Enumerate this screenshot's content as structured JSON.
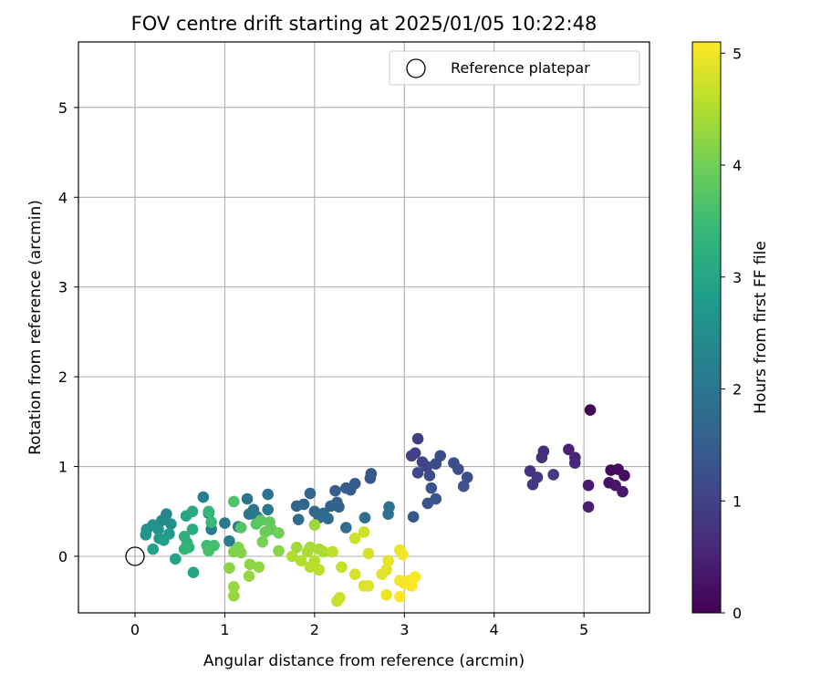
{
  "chart_data": {
    "type": "scatter",
    "title": "FOV centre drift starting at 2025/01/05 10:22:48",
    "xlabel": "Angular distance from reference (arcmin)",
    "ylabel": "Rotation from reference (arcmin)",
    "xlim": [
      -0.63,
      5.73
    ],
    "ylim": [
      -0.63,
      5.73
    ],
    "xticks": [
      0,
      1,
      2,
      3,
      4,
      5
    ],
    "yticks": [
      0,
      1,
      2,
      3,
      4,
      5
    ],
    "grid": true,
    "legend": {
      "entries": [
        "Reference platepar"
      ],
      "placement": "top-right"
    },
    "reference_point": {
      "x": 0,
      "y": 0
    },
    "colorbar": {
      "label": "Hours from first FF file",
      "colormap": "viridis",
      "range": [
        0,
        5.1
      ],
      "ticks": [
        0,
        1,
        2,
        3,
        4,
        5
      ]
    },
    "points": [
      [
        5.07,
        1.63,
        0.05
      ],
      [
        5.3,
        0.96,
        0.1
      ],
      [
        5.38,
        0.97,
        0.15
      ],
      [
        5.45,
        0.9,
        0.2
      ],
      [
        5.28,
        0.82,
        0.25
      ],
      [
        5.35,
        0.79,
        0.3
      ],
      [
        5.43,
        0.72,
        0.35
      ],
      [
        5.05,
        0.79,
        0.4
      ],
      [
        5.05,
        0.55,
        0.45
      ],
      [
        4.83,
        1.19,
        0.5
      ],
      [
        4.9,
        1.1,
        0.55
      ],
      [
        4.9,
        1.04,
        0.6
      ],
      [
        4.55,
        1.17,
        0.65
      ],
      [
        4.53,
        1.1,
        0.7
      ],
      [
        4.4,
        0.95,
        0.75
      ],
      [
        4.48,
        0.88,
        0.8
      ],
      [
        4.43,
        0.8,
        0.85
      ],
      [
        4.66,
        0.91,
        0.9
      ],
      [
        3.15,
        1.31,
        0.95
      ],
      [
        3.12,
        1.15,
        1.0
      ],
      [
        3.08,
        1.12,
        1.02
      ],
      [
        3.2,
        1.05,
        1.05
      ],
      [
        3.25,
        1.0,
        1.08
      ],
      [
        3.15,
        0.93,
        1.1
      ],
      [
        3.28,
        0.9,
        1.12
      ],
      [
        3.4,
        1.12,
        1.15
      ],
      [
        3.35,
        1.03,
        1.18
      ],
      [
        3.55,
        1.04,
        1.2
      ],
      [
        3.6,
        0.97,
        1.22
      ],
      [
        3.7,
        0.88,
        1.25
      ],
      [
        3.66,
        0.78,
        1.28
      ],
      [
        3.3,
        0.76,
        1.3
      ],
      [
        3.35,
        0.64,
        1.32
      ],
      [
        3.26,
        0.59,
        1.35
      ],
      [
        3.1,
        0.44,
        1.38
      ],
      [
        2.63,
        0.92,
        1.4
      ],
      [
        2.62,
        0.87,
        1.43
      ],
      [
        2.45,
        0.81,
        1.45
      ],
      [
        2.35,
        0.76,
        1.48
      ],
      [
        2.4,
        0.74,
        1.5
      ],
      [
        2.23,
        0.73,
        1.52
      ],
      [
        2.25,
        0.6,
        1.55
      ],
      [
        2.27,
        0.55,
        1.58
      ],
      [
        2.18,
        0.56,
        1.6
      ],
      [
        1.95,
        0.7,
        1.62
      ],
      [
        1.88,
        0.58,
        1.65
      ],
      [
        1.8,
        0.56,
        1.68
      ],
      [
        2.0,
        0.5,
        1.7
      ],
      [
        2.1,
        0.48,
        1.72
      ],
      [
        2.05,
        0.43,
        1.75
      ],
      [
        2.15,
        0.42,
        1.78
      ],
      [
        1.82,
        0.41,
        1.8
      ],
      [
        2.56,
        0.43,
        1.82
      ],
      [
        2.35,
        0.32,
        1.85
      ],
      [
        2.83,
        0.55,
        1.88
      ],
      [
        2.82,
        0.47,
        1.9
      ],
      [
        1.48,
        0.69,
        1.92
      ],
      [
        1.25,
        0.64,
        1.95
      ],
      [
        1.32,
        0.52,
        1.98
      ],
      [
        1.27,
        0.47,
        2.0
      ],
      [
        1.48,
        0.52,
        2.02
      ],
      [
        1.36,
        0.44,
        2.05
      ],
      [
        1.15,
        0.33,
        2.08
      ],
      [
        1.0,
        0.37,
        2.1
      ],
      [
        0.85,
        0.3,
        2.12
      ],
      [
        1.05,
        0.17,
        2.15
      ],
      [
        0.76,
        0.66,
        2.2
      ],
      [
        0.82,
        0.48,
        2.25
      ],
      [
        0.35,
        0.47,
        2.35
      ],
      [
        0.3,
        0.4,
        2.45
      ],
      [
        0.4,
        0.36,
        2.5
      ],
      [
        0.2,
        0.35,
        2.55
      ],
      [
        0.13,
        0.3,
        2.6
      ],
      [
        0.26,
        0.3,
        2.65
      ],
      [
        0.12,
        0.24,
        2.7
      ],
      [
        0.38,
        0.25,
        2.75
      ],
      [
        0.27,
        0.2,
        2.8
      ],
      [
        0.32,
        0.18,
        2.85
      ],
      [
        0.2,
        0.08,
        2.9
      ],
      [
        0.45,
        -0.03,
        2.95
      ],
      [
        0.65,
        -0.18,
        3.0
      ],
      [
        0.57,
        0.45,
        3.05
      ],
      [
        0.64,
        0.5,
        3.1
      ],
      [
        0.64,
        0.3,
        3.15
      ],
      [
        0.55,
        0.22,
        3.2
      ],
      [
        0.58,
        0.15,
        3.25
      ],
      [
        0.6,
        0.1,
        3.3
      ],
      [
        0.55,
        0.08,
        3.35
      ],
      [
        0.82,
        0.5,
        3.4
      ],
      [
        0.85,
        0.38,
        3.45
      ],
      [
        0.8,
        0.12,
        3.5
      ],
      [
        0.88,
        0.12,
        3.55
      ],
      [
        0.82,
        0.06,
        3.6
      ],
      [
        1.1,
        0.61,
        3.65
      ],
      [
        1.18,
        0.32,
        3.7
      ],
      [
        1.35,
        0.36,
        3.75
      ],
      [
        1.4,
        0.4,
        3.8
      ],
      [
        1.5,
        0.38,
        3.85
      ],
      [
        1.52,
        0.3,
        3.9
      ],
      [
        1.45,
        0.27,
        3.95
      ],
      [
        1.6,
        0.26,
        4.0
      ],
      [
        1.42,
        0.16,
        4.05
      ],
      [
        1.15,
        0.1,
        4.1
      ],
      [
        1.1,
        0.05,
        4.12
      ],
      [
        1.18,
        0.04,
        4.15
      ],
      [
        1.6,
        0.06,
        4.18
      ],
      [
        1.05,
        -0.13,
        4.2
      ],
      [
        1.28,
        -0.09,
        4.22
      ],
      [
        1.38,
        -0.12,
        4.25
      ],
      [
        1.27,
        -0.22,
        4.28
      ],
      [
        1.1,
        -0.34,
        4.3
      ],
      [
        1.1,
        -0.44,
        4.32
      ],
      [
        2.0,
        0.35,
        4.35
      ],
      [
        1.8,
        0.1,
        4.38
      ],
      [
        1.95,
        0.1,
        4.4
      ],
      [
        2.05,
        0.08,
        4.42
      ],
      [
        1.92,
        0.05,
        4.45
      ],
      [
        2.1,
        0.05,
        4.48
      ],
      [
        1.75,
        0.0,
        4.5
      ],
      [
        1.85,
        -0.05,
        4.52
      ],
      [
        2.0,
        -0.05,
        4.55
      ],
      [
        1.95,
        -0.12,
        4.58
      ],
      [
        2.05,
        -0.15,
        4.6
      ],
      [
        2.2,
        0.05,
        4.62
      ],
      [
        2.3,
        -0.12,
        4.65
      ],
      [
        2.25,
        -0.5,
        4.68
      ],
      [
        2.28,
        -0.46,
        4.7
      ],
      [
        2.45,
        0.2,
        4.72
      ],
      [
        2.55,
        0.27,
        4.75
      ],
      [
        2.6,
        0.03,
        4.78
      ],
      [
        2.45,
        -0.2,
        4.8
      ],
      [
        2.55,
        -0.33,
        4.82
      ],
      [
        2.6,
        -0.33,
        4.85
      ],
      [
        2.75,
        -0.2,
        4.88
      ],
      [
        2.8,
        -0.15,
        4.9
      ],
      [
        2.82,
        -0.05,
        4.92
      ],
      [
        2.8,
        -0.43,
        4.95
      ],
      [
        2.95,
        0.07,
        4.97
      ],
      [
        2.98,
        0.02,
        5.0
      ],
      [
        2.95,
        -0.27,
        5.02
      ],
      [
        3.05,
        -0.27,
        5.04
      ],
      [
        3.0,
        -0.3,
        5.06
      ],
      [
        3.08,
        -0.33,
        5.07
      ],
      [
        3.12,
        -0.23,
        5.08
      ],
      [
        2.95,
        -0.45,
        5.09
      ]
    ]
  }
}
